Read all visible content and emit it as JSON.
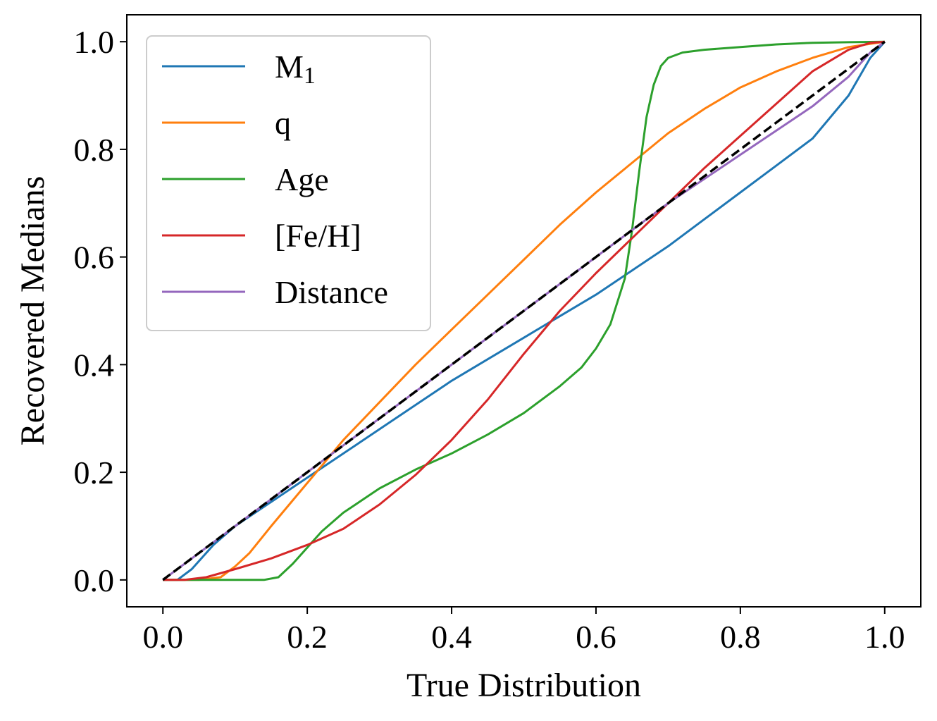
{
  "chart_data": {
    "type": "line",
    "title": "",
    "xlabel": "True Distribution",
    "ylabel": "Recovered Medians",
    "xlim": [
      -0.05,
      1.05
    ],
    "ylim": [
      -0.05,
      1.05
    ],
    "xticks": [
      "0.0",
      "0.2",
      "0.4",
      "0.6",
      "0.8",
      "1.0"
    ],
    "yticks": [
      "0.0",
      "0.2",
      "0.4",
      "0.6",
      "0.8",
      "1.0"
    ],
    "grid": false,
    "legend_position": "upper-left",
    "series": [
      {
        "name": "M",
        "name_sub": "1",
        "color": "#1f77b4",
        "style": "solid",
        "x": [
          0,
          0.02,
          0.04,
          0.07,
          0.1,
          0.15,
          0.2,
          0.25,
          0.3,
          0.35,
          0.4,
          0.45,
          0.5,
          0.55,
          0.6,
          0.65,
          0.7,
          0.75,
          0.8,
          0.85,
          0.9,
          0.95,
          0.98,
          1.0
        ],
        "y": [
          0,
          0.0,
          0.02,
          0.065,
          0.1,
          0.145,
          0.19,
          0.235,
          0.28,
          0.325,
          0.37,
          0.41,
          0.45,
          0.49,
          0.53,
          0.575,
          0.62,
          0.67,
          0.72,
          0.77,
          0.82,
          0.9,
          0.97,
          1.0
        ]
      },
      {
        "name": "q",
        "color": "#ff7f0e",
        "style": "solid",
        "x": [
          0,
          0.05,
          0.08,
          0.1,
          0.12,
          0.15,
          0.2,
          0.25,
          0.3,
          0.35,
          0.4,
          0.45,
          0.5,
          0.55,
          0.6,
          0.65,
          0.7,
          0.75,
          0.8,
          0.85,
          0.9,
          0.95,
          1.0
        ],
        "y": [
          0,
          0,
          0.005,
          0.025,
          0.05,
          0.1,
          0.18,
          0.26,
          0.33,
          0.4,
          0.465,
          0.53,
          0.595,
          0.66,
          0.72,
          0.775,
          0.83,
          0.875,
          0.915,
          0.945,
          0.97,
          0.99,
          1.0
        ]
      },
      {
        "name": "Age",
        "color": "#2ca02c",
        "style": "solid",
        "x": [
          0,
          0.14,
          0.16,
          0.18,
          0.2,
          0.22,
          0.25,
          0.3,
          0.35,
          0.4,
          0.45,
          0.5,
          0.55,
          0.58,
          0.6,
          0.62,
          0.64,
          0.65,
          0.66,
          0.67,
          0.68,
          0.69,
          0.7,
          0.72,
          0.75,
          0.8,
          0.85,
          0.9,
          0.95,
          1.0
        ],
        "y": [
          0,
          0,
          0.005,
          0.03,
          0.06,
          0.09,
          0.125,
          0.17,
          0.205,
          0.235,
          0.27,
          0.31,
          0.36,
          0.395,
          0.43,
          0.475,
          0.56,
          0.65,
          0.76,
          0.86,
          0.92,
          0.955,
          0.97,
          0.98,
          0.985,
          0.99,
          0.995,
          0.998,
          0.999,
          1.0
        ]
      },
      {
        "name": "[Fe/H]",
        "color": "#d62728",
        "style": "solid",
        "x": [
          0,
          0.03,
          0.06,
          0.1,
          0.15,
          0.2,
          0.25,
          0.3,
          0.35,
          0.4,
          0.45,
          0.5,
          0.55,
          0.6,
          0.65,
          0.7,
          0.75,
          0.8,
          0.85,
          0.9,
          0.95,
          0.98,
          1.0
        ],
        "y": [
          0,
          0.0,
          0.005,
          0.02,
          0.04,
          0.065,
          0.095,
          0.14,
          0.195,
          0.26,
          0.335,
          0.42,
          0.5,
          0.57,
          0.635,
          0.7,
          0.765,
          0.825,
          0.885,
          0.945,
          0.985,
          0.998,
          1.0
        ]
      },
      {
        "name": "Distance",
        "color": "#9467bd",
        "style": "solid",
        "x": [
          0,
          0.1,
          0.2,
          0.3,
          0.4,
          0.5,
          0.6,
          0.7,
          0.8,
          0.9,
          0.95,
          0.98,
          1.0
        ],
        "y": [
          0,
          0.1,
          0.2,
          0.3,
          0.4,
          0.5,
          0.6,
          0.7,
          0.79,
          0.88,
          0.935,
          0.98,
          1.0
        ]
      },
      {
        "name": "",
        "color": "#000000",
        "style": "dashed",
        "legend": false,
        "x": [
          0,
          1.0
        ],
        "y": [
          0,
          1.0
        ]
      }
    ]
  }
}
